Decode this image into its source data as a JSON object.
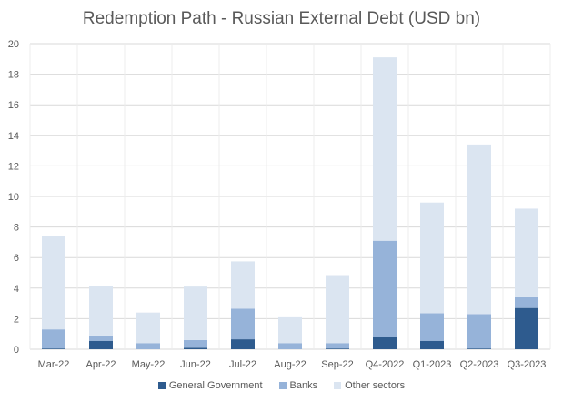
{
  "chart_data": {
    "type": "bar",
    "stacked": true,
    "title": "Redemption Path - Russian External Debt (USD bn)",
    "xlabel": "",
    "ylabel": "",
    "ylim": [
      0,
      20
    ],
    "yticks": [
      0,
      2,
      4,
      6,
      8,
      10,
      12,
      14,
      16,
      18,
      20
    ],
    "grid": true,
    "legend_position": "bottom",
    "categories": [
      "Mar-22",
      "Apr-22",
      "May-22",
      "Jun-22",
      "Jul-22",
      "Aug-22",
      "Sep-22",
      "Q4-2022",
      "Q1-2023",
      "Q2-2023",
      "Q3-2023"
    ],
    "series": [
      {
        "name": "General Government",
        "color": "#2e5b8e",
        "values": [
          0.05,
          0.55,
          0.0,
          0.1,
          0.65,
          0.0,
          0.05,
          0.8,
          0.55,
          0.05,
          2.7
        ]
      },
      {
        "name": "Banks",
        "color": "#96b3d9",
        "values": [
          1.25,
          0.35,
          0.4,
          0.5,
          2.0,
          0.4,
          0.35,
          6.3,
          1.8,
          2.25,
          0.7
        ]
      },
      {
        "name": "Other sectors",
        "color": "#dbe5f1",
        "values": [
          6.1,
          3.25,
          2.0,
          3.5,
          3.1,
          1.75,
          4.45,
          12.0,
          7.25,
          11.1,
          5.8
        ]
      }
    ]
  }
}
